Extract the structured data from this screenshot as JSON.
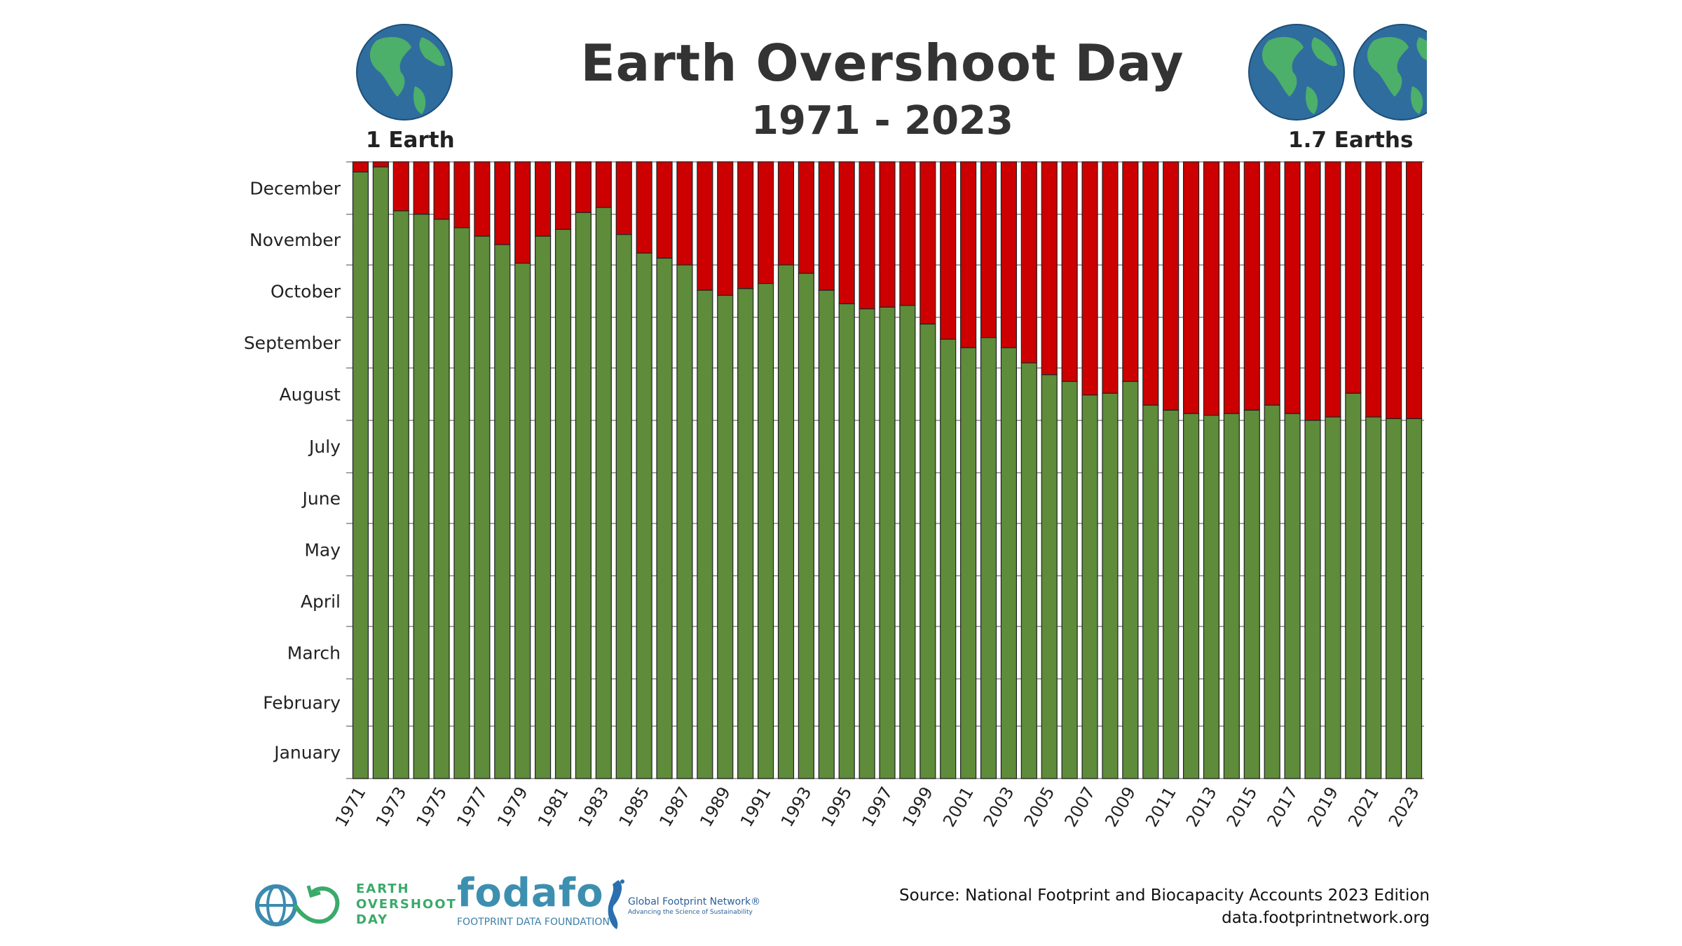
{
  "header": {
    "title": "Earth Overshoot Day",
    "subtitle": "1971 - 2023",
    "left_label": "1 Earth",
    "right_label": "1.7 Earths",
    "globe_icon": "earth-globe-icon"
  },
  "chart_data": {
    "type": "bar",
    "stacked": true,
    "title": "Earth Overshoot Day",
    "subtitle": "1971 - 2023",
    "xlabel": "",
    "ylabel": "",
    "y_axis": "calendar date (Jan 1 - Dec 31)",
    "y_tick_labels": [
      "January",
      "February",
      "March",
      "April",
      "May",
      "June",
      "July",
      "August",
      "September",
      "October",
      "November",
      "December"
    ],
    "categories": [
      "1971",
      "1972",
      "1973",
      "1974",
      "1975",
      "1976",
      "1977",
      "1978",
      "1979",
      "1980",
      "1981",
      "1982",
      "1983",
      "1984",
      "1985",
      "1986",
      "1987",
      "1988",
      "1989",
      "1990",
      "1991",
      "1992",
      "1993",
      "1994",
      "1995",
      "1996",
      "1997",
      "1998",
      "1999",
      "2000",
      "2001",
      "2002",
      "2003",
      "2004",
      "2005",
      "2006",
      "2007",
      "2008",
      "2009",
      "2010",
      "2011",
      "2012",
      "2013",
      "2014",
      "2015",
      "2016",
      "2017",
      "2018",
      "2019",
      "2020",
      "2021",
      "2022",
      "2023"
    ],
    "x_tick_labels": [
      "1971",
      "1973",
      "1975",
      "1977",
      "1979",
      "1981",
      "1983",
      "1985",
      "1987",
      "1989",
      "1991",
      "1993",
      "1995",
      "1997",
      "1999",
      "2001",
      "2003",
      "2005",
      "2007",
      "2009",
      "2011",
      "2013",
      "2015",
      "2017",
      "2019",
      "2021",
      "2023"
    ],
    "overshoot_dates": [
      "Dec 25",
      "Dec 28",
      "Dec 2",
      "Nov 30",
      "Nov 27",
      "Nov 22",
      "Nov 17",
      "Nov 12",
      "Nov 1",
      "Nov 17",
      "Nov 21",
      "Dec 1",
      "Dec 4",
      "Nov 18",
      "Nov 7",
      "Nov 4",
      "Oct 31",
      "Oct 16",
      "Oct 13",
      "Oct 17",
      "Oct 20",
      "Oct 31",
      "Oct 26",
      "Oct 16",
      "Oct 8",
      "Oct 5",
      "Oct 6",
      "Oct 7",
      "Sep 26",
      "Sep 17",
      "Sep 12",
      "Sep 18",
      "Sep 12",
      "Sep 3",
      "Aug 27",
      "Aug 23",
      "Aug 15",
      "Aug 16",
      "Aug 23",
      "Aug 9",
      "Aug 6",
      "Aug 4",
      "Aug 3",
      "Aug 4",
      "Aug 6",
      "Aug 9",
      "Aug 4",
      "Jul 31",
      "Aug 2",
      "Aug 16",
      "Aug 2",
      "Aug 1",
      "Aug 1"
    ],
    "colors": {
      "within_budget": "#5e8c3a",
      "overshoot": "#cc0000"
    },
    "grid": true,
    "legend": "none"
  },
  "footer": {
    "eod_logo": [
      "EARTH",
      "OVERSHOOT",
      "DAY"
    ],
    "fodafo_logo": "fodafo",
    "fodafo_sub": "FOOTPRINT DATA FOUNDATION",
    "gfn_name": "Global Footprint Network®",
    "gfn_tagline": "Advancing the Science of Sustainability",
    "source": "Source: National Footprint and Biocapacity Accounts 2023 Edition",
    "url": "data.footprintnetwork.org"
  }
}
